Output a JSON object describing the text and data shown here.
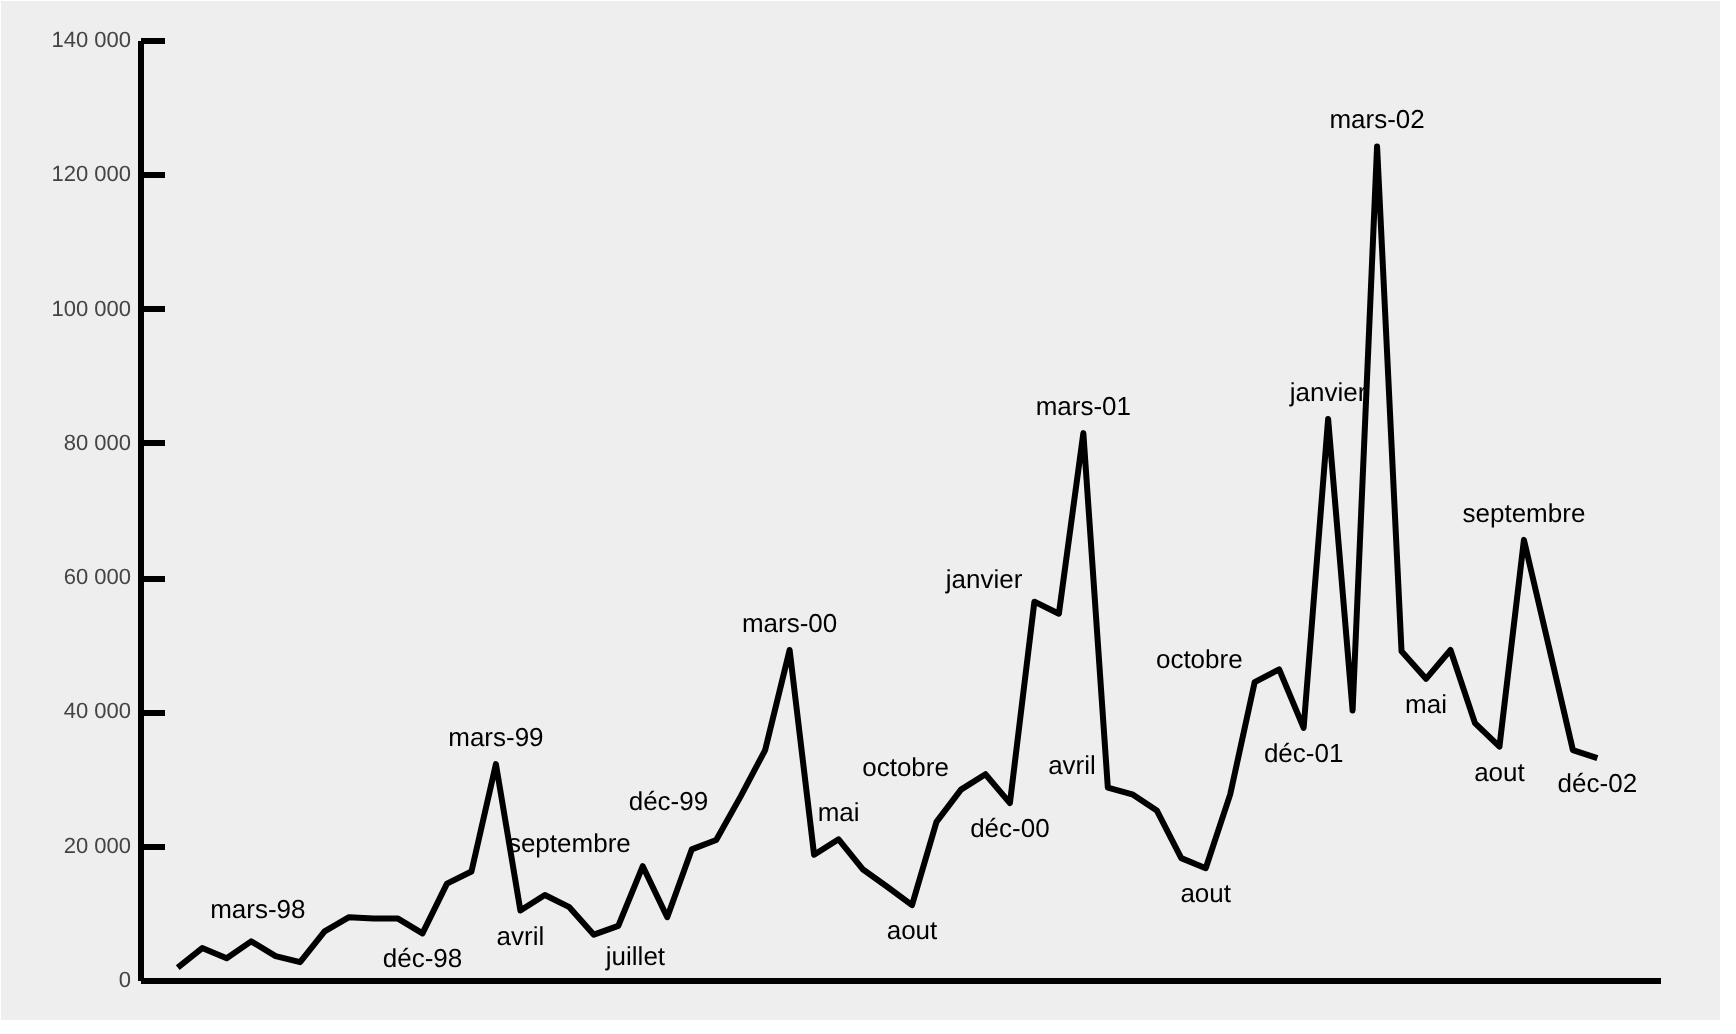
{
  "chart_data": {
    "type": "line",
    "color": "#000000",
    "marker": "none",
    "line_style": "solid",
    "grid": false,
    "tick_labels": "y",
    "categories": [
      null,
      null,
      null,
      null,
      null,
      null,
      null,
      null,
      null,
      null,
      null,
      null,
      null,
      null,
      null,
      null,
      null,
      null,
      null,
      null,
      null,
      null,
      null,
      null,
      null,
      null,
      null,
      null,
      null,
      null,
      null,
      null,
      null,
      null,
      null,
      null,
      null,
      null,
      null,
      null,
      null,
      null,
      null,
      null,
      null,
      null,
      null,
      null,
      null,
      null,
      null,
      null,
      null,
      null,
      null,
      null,
      null,
      null,
      null
    ],
    "value_labels": [
      null,
      "mars-98",
      null,
      null,
      null,
      null,
      null,
      null,
      null,
      null,
      "déc-98",
      null,
      null,
      "mars-99",
      "avril",
      null,
      null,
      "juillet",
      null,
      "septembre",
      null,
      null,
      "déc-99",
      null,
      null,
      "mars-00",
      null,
      "mai",
      null,
      null,
      "aout",
      null,
      "octobre",
      null,
      "déc-00",
      "janvier",
      null,
      "mars-01",
      "avril",
      null,
      null,
      null,
      "aout",
      null,
      "octobre",
      null,
      "déc-01",
      "janvier",
      null,
      "mars-02",
      null,
      "mai",
      null,
      null,
      "aout",
      "septembre",
      null,
      null,
      "déc-02"
    ],
    "values": [
      2000,
      4900,
      3400,
      5900,
      3700,
      2800,
      7400,
      9500,
      9300,
      9300,
      7100,
      14500,
      16300,
      32300,
      10500,
      12800,
      11000,
      6900,
      8200,
      17100,
      9500,
      19600,
      21000,
      27500,
      34400,
      49300,
      18800,
      21100,
      16600,
      14000,
      11300,
      23700,
      28500,
      30800,
      26500,
      56500,
      54700,
      81600,
      28800,
      27800,
      25400,
      18300,
      16800,
      27800,
      44500,
      46400,
      37700,
      83700,
      40300,
      124300,
      49100,
      45000,
      49300,
      38400,
      34900,
      65700,
      50100,
      34400,
      33200
    ],
    "ylim": [
      0,
      140000
    ],
    "yticks": [
      {
        "value": 0,
        "label": "0"
      },
      {
        "value": 20000,
        "label": "20 000"
      },
      {
        "value": 40000,
        "label": "40 000"
      },
      {
        "value": 60000,
        "label": "60 000"
      },
      {
        "value": 80000,
        "label": "80 000"
      },
      {
        "value": 100000,
        "label": "100 000"
      },
      {
        "value": 120000,
        "label": "120 000"
      },
      {
        "value": 140000,
        "label": "140 000"
      }
    ]
  }
}
